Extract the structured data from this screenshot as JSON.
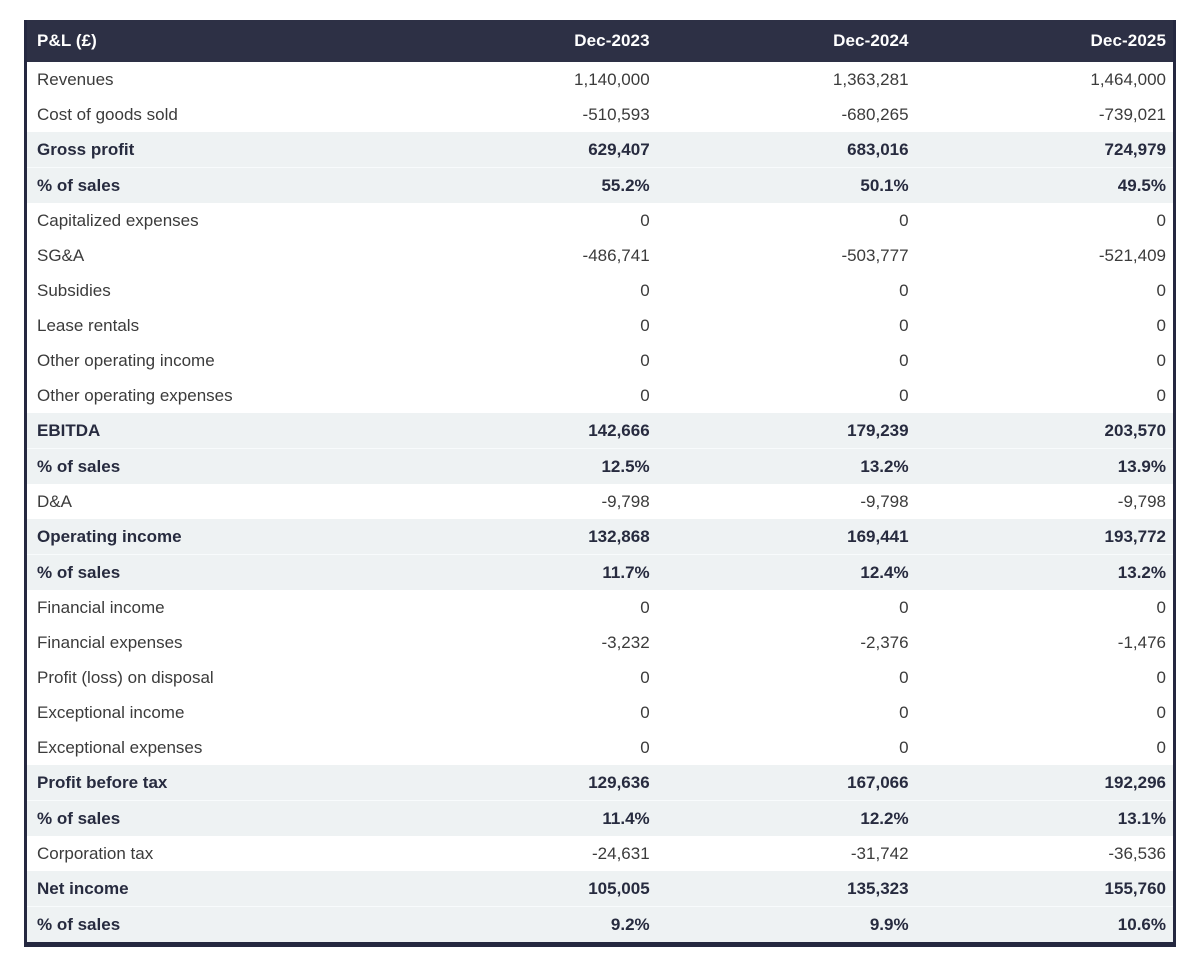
{
  "colors": {
    "header_bg": "#2d3045",
    "header_text": "#ffffff",
    "subtotal_row_bg": "#eef2f3",
    "subtotal_text": "#272b3f",
    "body_text": "#3b3b3b",
    "table_border": "#252840",
    "page_bg": "#ffffff"
  },
  "chart_data": {
    "type": "table",
    "title": "P&L (£)",
    "columns": [
      "P&L (£)",
      "Dec-2023",
      "Dec-2024",
      "Dec-2025"
    ],
    "rows": [
      {
        "label": "Revenues",
        "values": [
          "1,140,000",
          "1,363,281",
          "1,464,000"
        ],
        "emphasis": false
      },
      {
        "label": "Cost of goods sold",
        "values": [
          "-510,593",
          "-680,265",
          "-739,021"
        ],
        "emphasis": false
      },
      {
        "label": "Gross profit",
        "values": [
          "629,407",
          "683,016",
          "724,979"
        ],
        "emphasis": true
      },
      {
        "label": "% of sales",
        "values": [
          "55.2%",
          "50.1%",
          "49.5%"
        ],
        "emphasis": true
      },
      {
        "label": "Capitalized expenses",
        "values": [
          "0",
          "0",
          "0"
        ],
        "emphasis": false
      },
      {
        "label": "SG&A",
        "values": [
          "-486,741",
          "-503,777",
          "-521,409"
        ],
        "emphasis": false
      },
      {
        "label": "Subsidies",
        "values": [
          "0",
          "0",
          "0"
        ],
        "emphasis": false
      },
      {
        "label": "Lease rentals",
        "values": [
          "0",
          "0",
          "0"
        ],
        "emphasis": false
      },
      {
        "label": "Other operating income",
        "values": [
          "0",
          "0",
          "0"
        ],
        "emphasis": false
      },
      {
        "label": "Other operating expenses",
        "values": [
          "0",
          "0",
          "0"
        ],
        "emphasis": false
      },
      {
        "label": "EBITDA",
        "values": [
          "142,666",
          "179,239",
          "203,570"
        ],
        "emphasis": true
      },
      {
        "label": "% of sales",
        "values": [
          "12.5%",
          "13.2%",
          "13.9%"
        ],
        "emphasis": true
      },
      {
        "label": "D&A",
        "values": [
          "-9,798",
          "-9,798",
          "-9,798"
        ],
        "emphasis": false
      },
      {
        "label": "Operating income",
        "values": [
          "132,868",
          "169,441",
          "193,772"
        ],
        "emphasis": true
      },
      {
        "label": "% of sales",
        "values": [
          "11.7%",
          "12.4%",
          "13.2%"
        ],
        "emphasis": true
      },
      {
        "label": "Financial income",
        "values": [
          "0",
          "0",
          "0"
        ],
        "emphasis": false
      },
      {
        "label": "Financial expenses",
        "values": [
          "-3,232",
          "-2,376",
          "-1,476"
        ],
        "emphasis": false
      },
      {
        "label": "Profit (loss) on disposal",
        "values": [
          "0",
          "0",
          "0"
        ],
        "emphasis": false
      },
      {
        "label": "Exceptional income",
        "values": [
          "0",
          "0",
          "0"
        ],
        "emphasis": false
      },
      {
        "label": "Exceptional expenses",
        "values": [
          "0",
          "0",
          "0"
        ],
        "emphasis": false
      },
      {
        "label": "Profit before tax",
        "values": [
          "129,636",
          "167,066",
          "192,296"
        ],
        "emphasis": true
      },
      {
        "label": "% of sales",
        "values": [
          "11.4%",
          "12.2%",
          "13.1%"
        ],
        "emphasis": true
      },
      {
        "label": "Corporation tax",
        "values": [
          "-24,631",
          "-31,742",
          "-36,536"
        ],
        "emphasis": false
      },
      {
        "label": "Net income",
        "values": [
          "105,005",
          "135,323",
          "155,760"
        ],
        "emphasis": true
      },
      {
        "label": "% of sales",
        "values": [
          "9.2%",
          "9.9%",
          "10.6%"
        ],
        "emphasis": true
      }
    ]
  }
}
